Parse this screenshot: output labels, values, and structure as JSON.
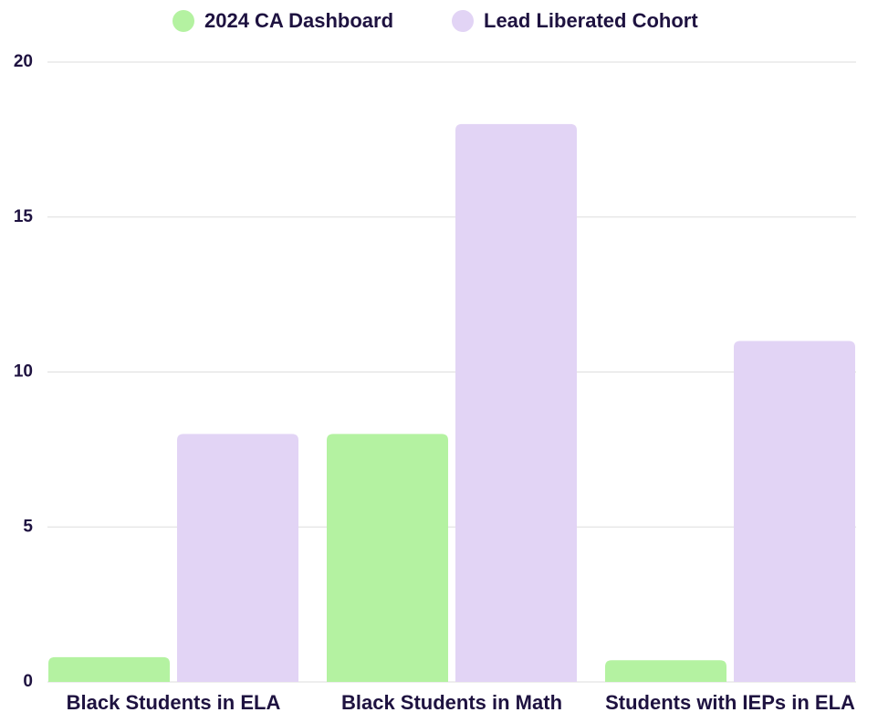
{
  "chart_data": {
    "type": "bar",
    "categories": [
      "Black Students in ELA",
      "Black Students in Math",
      "Students with IEPs in ELA"
    ],
    "series": [
      {
        "name": "2024 CA Dashboard",
        "color": "#b4f2a1",
        "values": [
          0.8,
          8,
          0.7
        ]
      },
      {
        "name": "Lead Liberated Cohort",
        "color": "#e2d4f5",
        "values": [
          8,
          18,
          11
        ]
      }
    ],
    "ylim": [
      0,
      20
    ],
    "yticks": [
      0,
      5,
      10,
      15,
      20
    ],
    "grid": true,
    "legend": "top"
  }
}
